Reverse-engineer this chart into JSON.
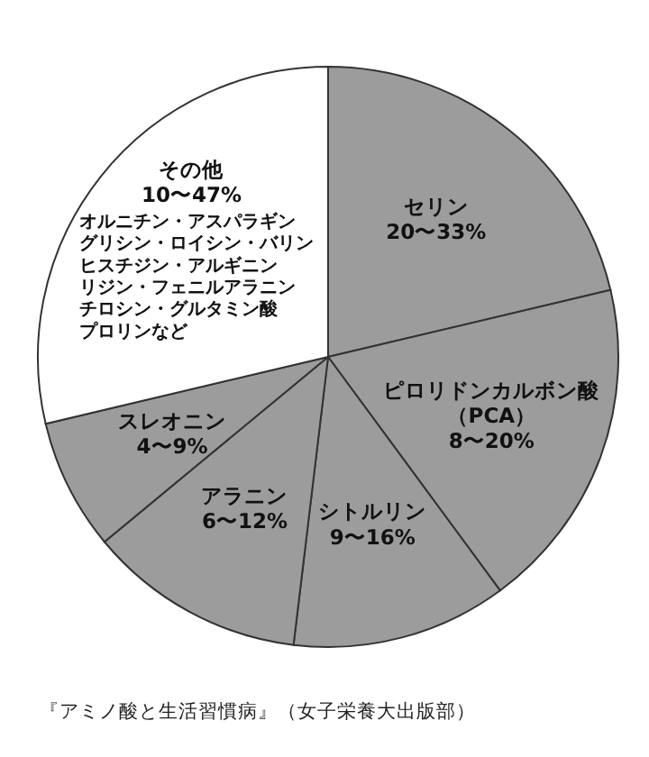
{
  "chart_data": {
    "type": "pie",
    "categories": [
      "セリン",
      "ピロリドンカルボン酸",
      "シトルリン",
      "アラニン",
      "スレオニン",
      "その他"
    ],
    "values": [
      21.3,
      18.6,
      12.0,
      12.1,
      7.3,
      28.7
    ],
    "colors": [
      "#9c9c9c",
      "#9c9c9c",
      "#9c9c9c",
      "#9c9c9c",
      "#9c9c9c",
      "#ffffff"
    ],
    "annotations": [
      {
        "text": "20〜33%",
        "x": "セリン"
      },
      {
        "text": "（PCA）",
        "x": "ピロリドンカルボン酸"
      },
      {
        "text": "8〜20%",
        "x": "ピロリドンカルボン酸"
      },
      {
        "text": "9〜16%",
        "x": "シトルリン"
      },
      {
        "text": "6〜12%",
        "x": "アラニン"
      },
      {
        "text": "4〜9%",
        "x": "スレオニン"
      },
      {
        "text": "10〜47%",
        "x": "その他"
      },
      {
        "text": "オルニチン・アスパラギン",
        "x": "その他"
      },
      {
        "text": "グリシン・ロイシン・バリン",
        "x": "その他"
      },
      {
        "text": "ヒスチジン・アルギニン",
        "x": "その他"
      },
      {
        "text": "リジン・フェニルアラニン",
        "x": "その他"
      },
      {
        "text": "チロシン・グルタミン酸",
        "x": "その他"
      },
      {
        "text": "プロリンなど",
        "x": "その他"
      },
      "『アミノ酸と生活習慣病』（女子栄養大出版部）"
    ]
  }
}
